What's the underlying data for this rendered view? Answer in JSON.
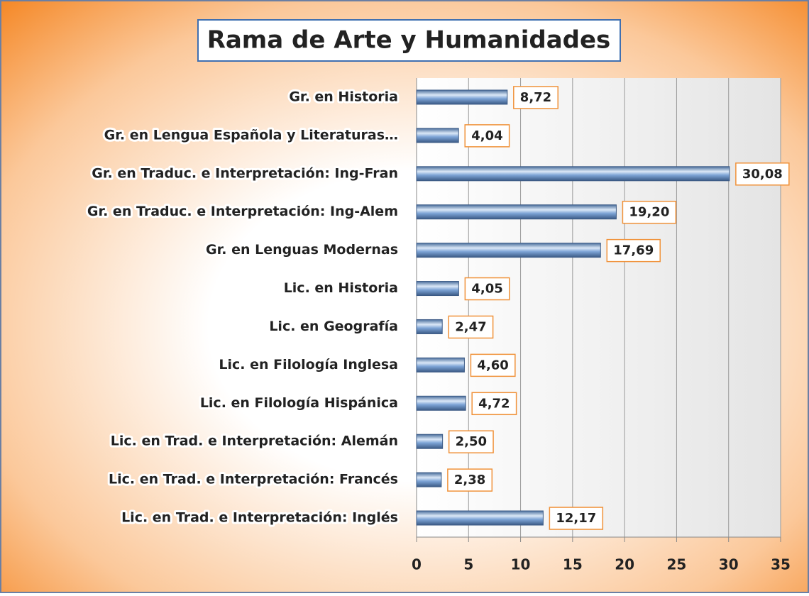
{
  "chart_data": {
    "type": "barh",
    "title": "Rama de Arte y Humanidades",
    "categories": [
      "Gr. en Historia",
      "Gr. en Lengua Española y Literaturas…",
      "Gr. en Traduc. e Interpretación: Ing-Fran",
      "Gr. en Traduc. e Interpretación: Ing-Alem",
      "Gr. en Lenguas Modernas",
      "Lic. en Historia",
      "Lic. en Geografía",
      "Lic. en Filología Inglesa",
      "Lic. en Filología Hispánica",
      "Lic. en Trad. e Interpretación: Alemán",
      "Lic. en Trad. e Interpretación: Francés",
      "Lic. en Trad. e Interpretación: Inglés"
    ],
    "values": [
      8.72,
      4.04,
      30.08,
      19.2,
      17.69,
      4.05,
      2.47,
      4.6,
      4.72,
      2.5,
      2.38,
      12.17
    ],
    "value_labels": [
      "8,72",
      "4,04",
      "30,08",
      "19,20",
      "17,69",
      "4,05",
      "2,47",
      "4,60",
      "4,72",
      "2,50",
      "2,38",
      "12,17"
    ],
    "color": "#7da4d6",
    "xlim": [
      0,
      35
    ],
    "xticks": [
      0,
      5,
      10,
      15,
      20,
      25,
      30,
      35
    ],
    "grid": true
  }
}
